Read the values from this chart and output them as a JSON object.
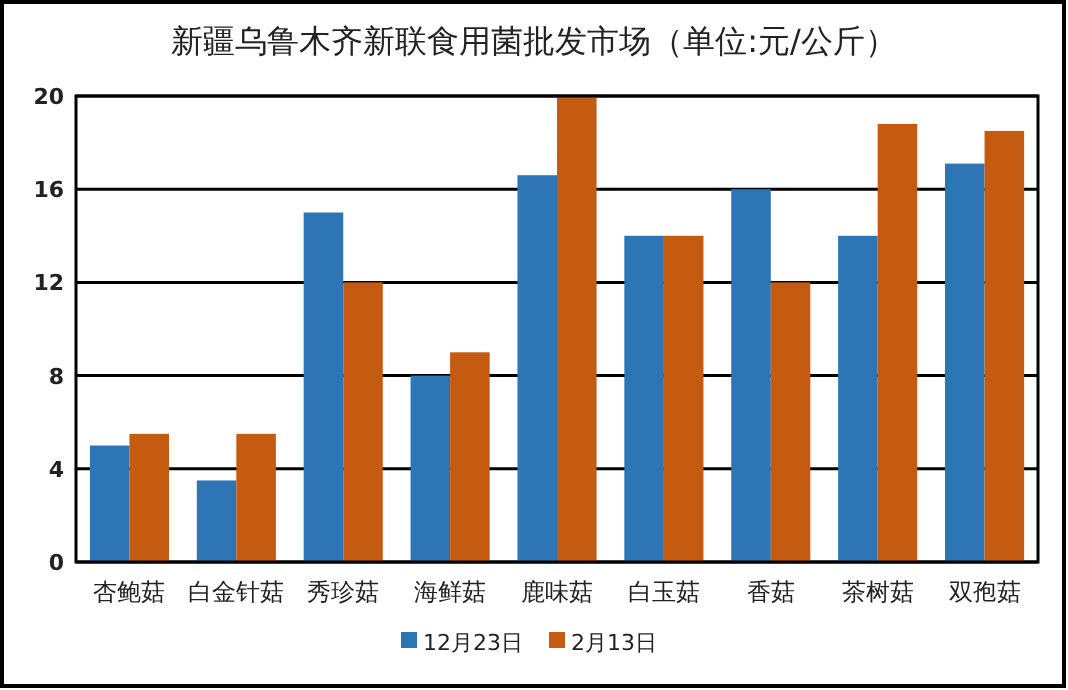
{
  "chart_data": {
    "type": "bar",
    "title": "新疆乌鲁木齐新联食用菌批发市场（单位:元/公斤）",
    "categories": [
      "杏鲍菇",
      "白金针菇",
      "秀珍菇",
      "海鲜菇",
      "鹿味菇",
      "白玉菇",
      "香菇",
      "茶树菇",
      "双孢菇"
    ],
    "series": [
      {
        "name": "12月23日",
        "color": "#2e75b6",
        "values": [
          5,
          3.5,
          15,
          8,
          16.6,
          14,
          16,
          14,
          17.1
        ]
      },
      {
        "name": "2月13日",
        "color": "#c55a11",
        "values": [
          5.5,
          5.5,
          12,
          9,
          20,
          14,
          12,
          18.8,
          18.5
        ]
      }
    ],
    "ylim": [
      0,
      20
    ],
    "yticks": [
      0,
      4,
      8,
      12,
      16,
      20
    ],
    "grid": "y",
    "legend": "bottom"
  }
}
